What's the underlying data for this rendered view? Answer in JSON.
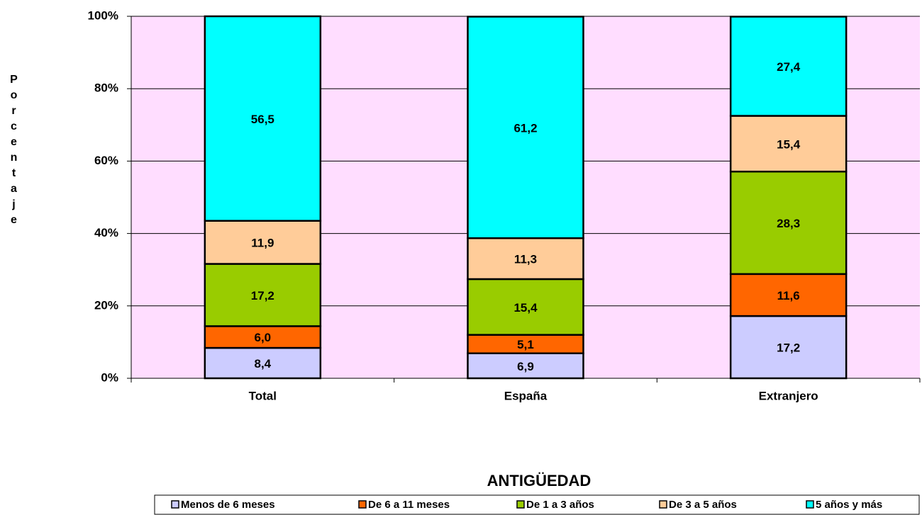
{
  "chart_data": {
    "type": "stacked_bar",
    "y_label": "Porcentaje",
    "x_label": "ANTIGÜEDAD",
    "categories": [
      "Total",
      "España",
      "Extranjero"
    ],
    "series": [
      {
        "name": "Menos de 6 meses",
        "color": "#ccccff",
        "values": [
          8.4,
          6.9,
          17.2
        ],
        "value_labels": [
          "8,4",
          "6,9",
          "17,2"
        ]
      },
      {
        "name": "De 6 a 11 meses",
        "color": "#ff6600",
        "values": [
          6.0,
          5.1,
          11.6
        ],
        "value_labels": [
          "6,0",
          "5,1",
          "11,6"
        ]
      },
      {
        "name": "De 1 a 3 años",
        "color": "#99cc00",
        "values": [
          17.2,
          15.4,
          28.3
        ],
        "value_labels": [
          "17,2",
          "15,4",
          "28,3"
        ]
      },
      {
        "name": "De 3 a 5 años",
        "color": "#ffcc99",
        "values": [
          11.9,
          11.3,
          15.4
        ],
        "value_labels": [
          "11,9",
          "11,3",
          "15,4"
        ]
      },
      {
        "name": "5 años y más",
        "color": "#00ffff",
        "values": [
          56.5,
          61.2,
          27.4
        ],
        "value_labels": [
          "56,5",
          "61,2",
          "27,4"
        ]
      }
    ],
    "ylim": [
      0,
      100
    ],
    "yticks": [
      {
        "value": 0,
        "label": "0%"
      },
      {
        "value": 20,
        "label": "20%"
      },
      {
        "value": 40,
        "label": "40%"
      },
      {
        "value": 60,
        "label": "60%"
      },
      {
        "value": 80,
        "label": "80%"
      },
      {
        "value": 100,
        "label": "100%"
      }
    ],
    "grid": true,
    "plot_background": "#ffddff",
    "legend": "bottom"
  }
}
